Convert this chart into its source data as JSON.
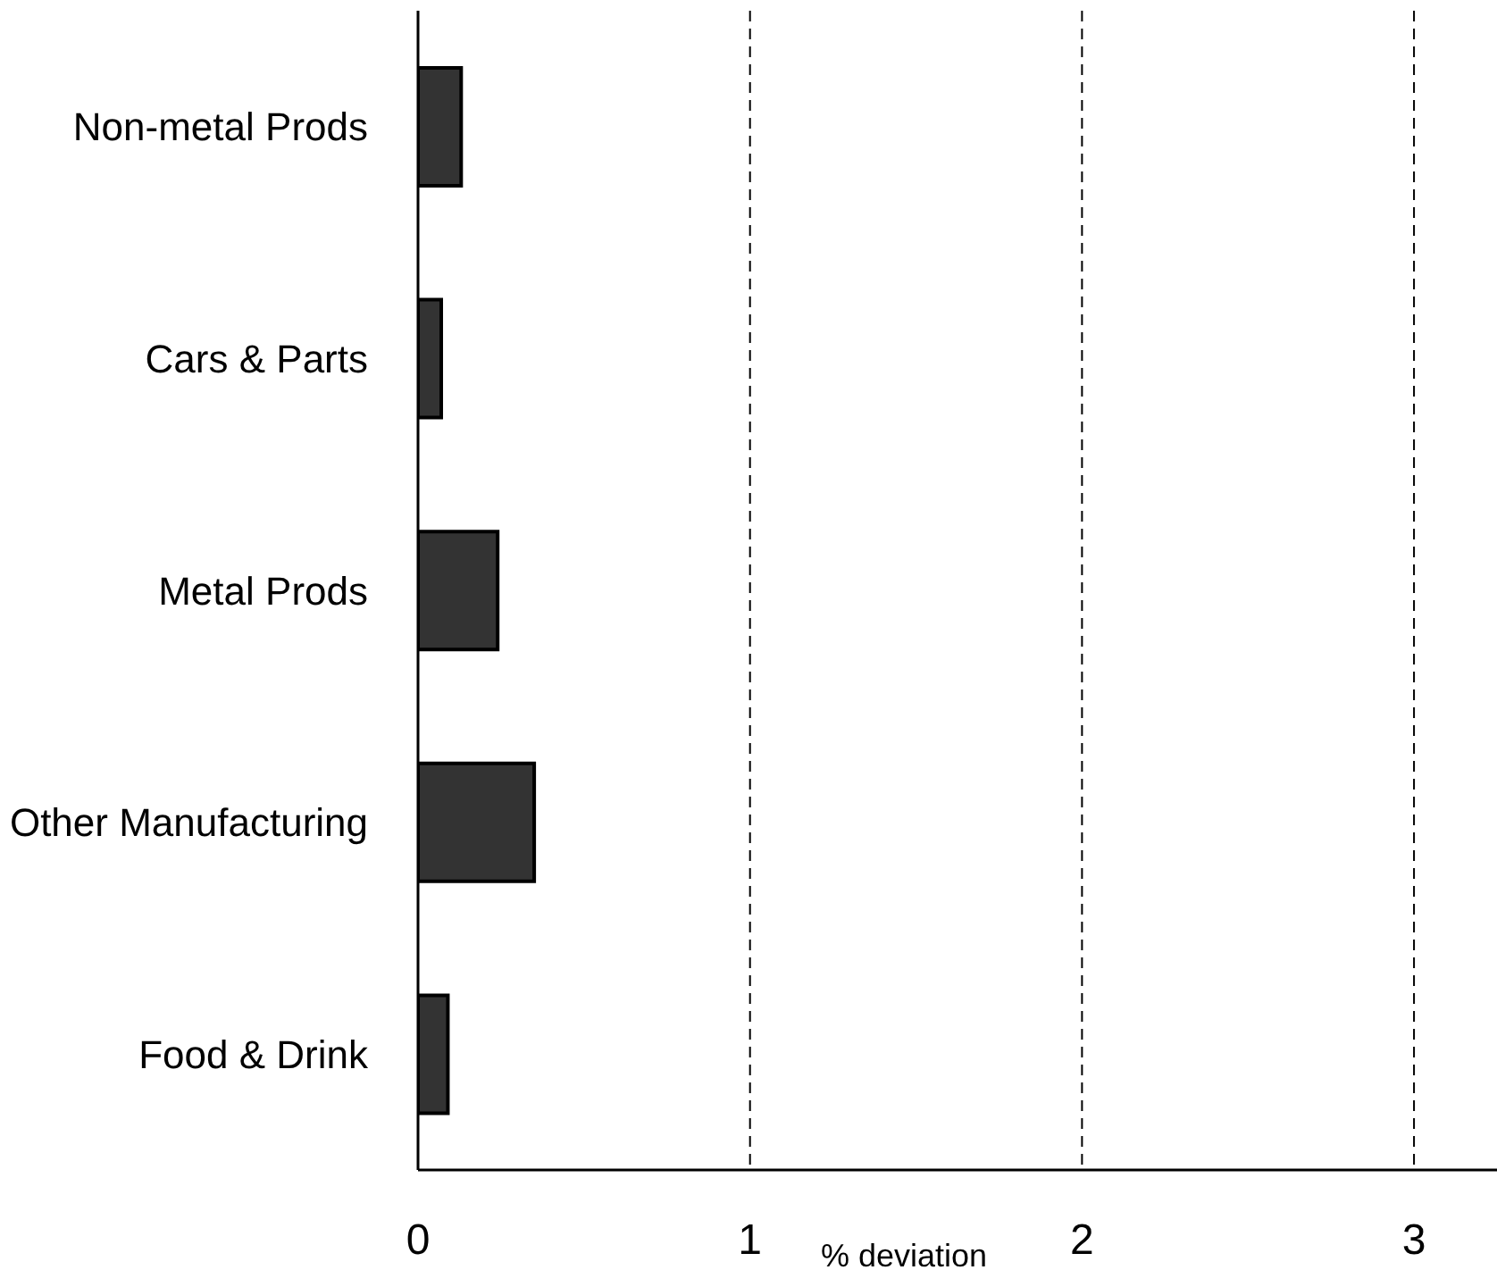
{
  "chart_data": {
    "type": "bar",
    "orientation": "horizontal",
    "xlabel": "% deviation",
    "categories": [
      "Non-metal Prods",
      "Cars & Parts",
      "Metal Prods",
      "Other Manufacturing",
      "Food & Drink"
    ],
    "values": [
      0.13,
      0.07,
      0.24,
      0.35,
      0.09
    ],
    "color": "#333333",
    "xlim": [
      0,
      3.25
    ],
    "xticks": [
      0,
      1,
      2,
      3
    ],
    "grid": "x"
  }
}
